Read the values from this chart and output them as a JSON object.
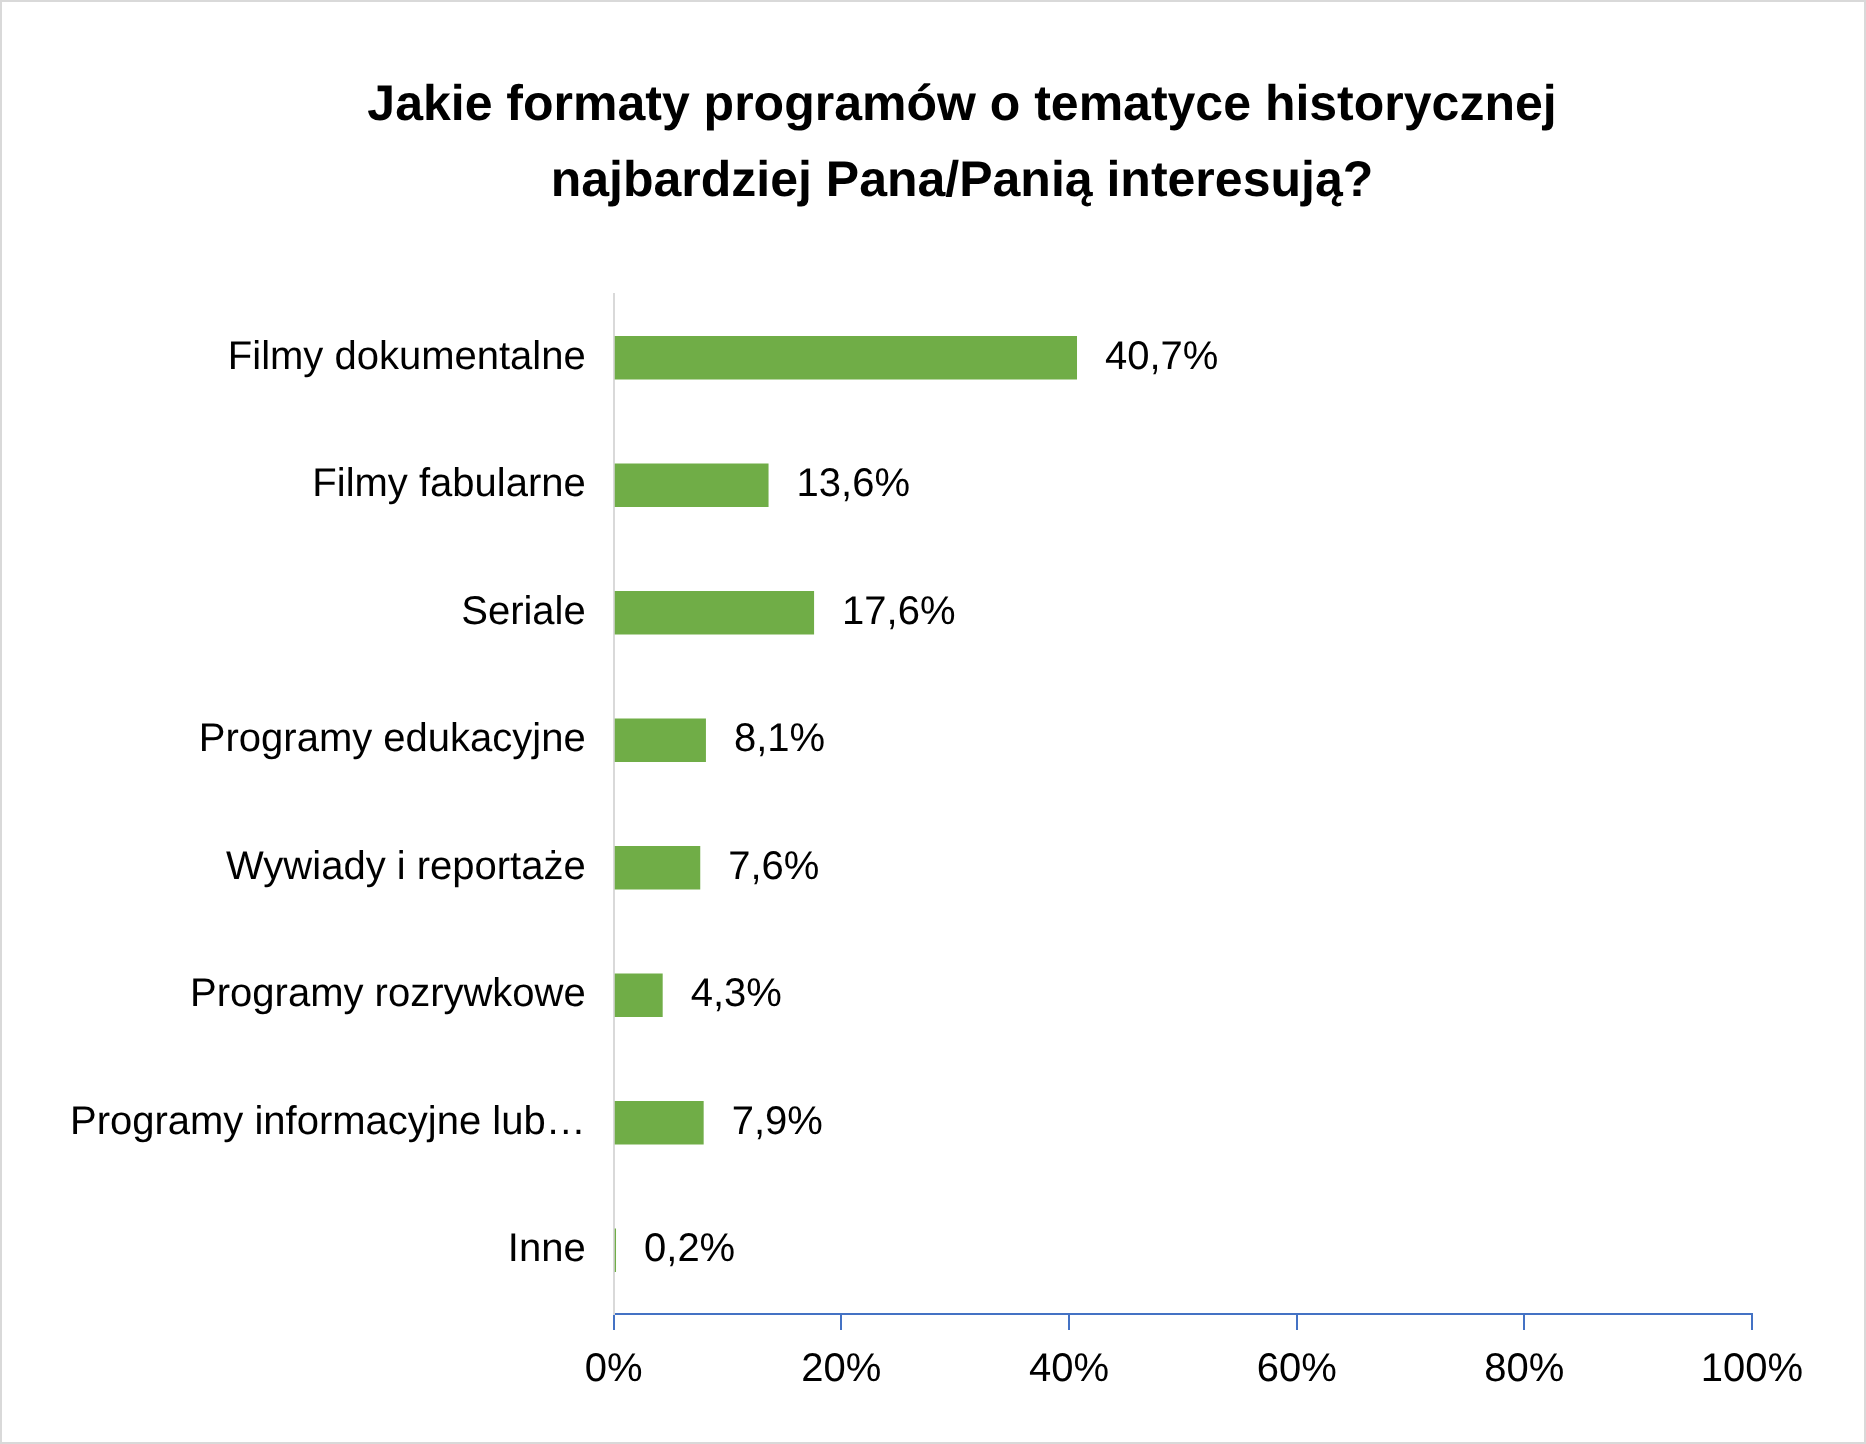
{
  "chart_data": {
    "type": "bar",
    "orientation": "horizontal",
    "title": "Jakie formaty programów o tematyce historycznej najbardziej Pana/Panią interesują?",
    "categories": [
      "Filmy dokumentalne",
      "Filmy fabularne",
      "Seriale",
      "Programy edukacyjne",
      "Wywiady i reportaże",
      "Programy rozrywkowe",
      "Programy informacyjne lub…",
      "Inne"
    ],
    "values": [
      40.7,
      13.6,
      17.6,
      8.1,
      7.6,
      4.3,
      7.9,
      0.2
    ],
    "value_labels": [
      "40,7%",
      "13,6%",
      "17,6%",
      "8,1%",
      "7,6%",
      "4,3%",
      "7,9%",
      "0,2%"
    ],
    "color": "#70ad47",
    "xlim": [
      0,
      100
    ],
    "xticks": [
      {
        "value": 0,
        "label": "0%"
      },
      {
        "value": 20,
        "label": "20%"
      },
      {
        "value": 40,
        "label": "40%"
      },
      {
        "value": 60,
        "label": "60%"
      },
      {
        "value": 80,
        "label": "80%"
      },
      {
        "value": 100,
        "label": "100%"
      }
    ],
    "grid": false,
    "legend": false
  }
}
